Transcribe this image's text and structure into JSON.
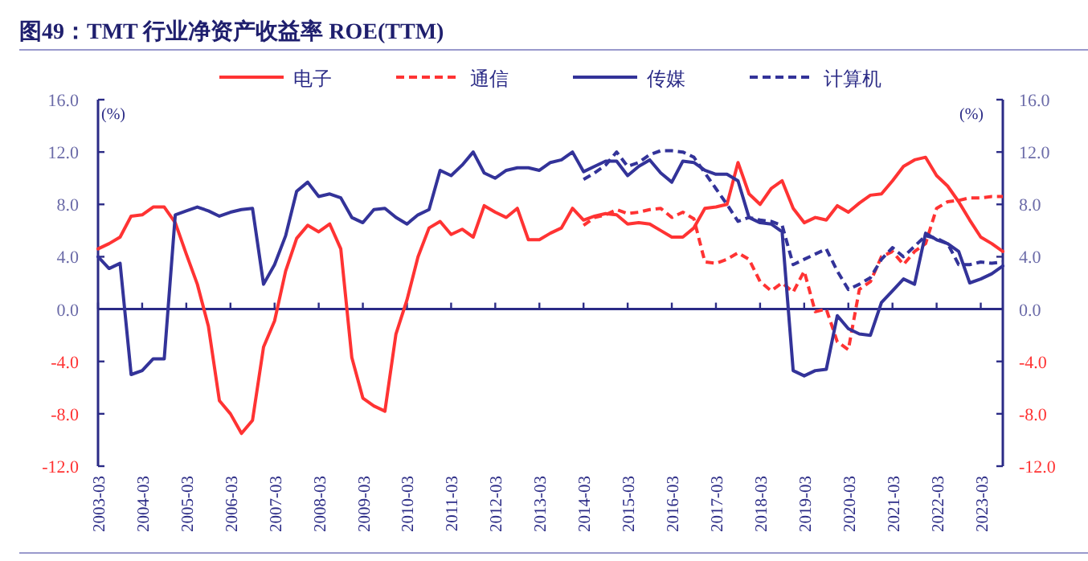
{
  "chart_data": {
    "type": "line",
    "title": "图49：TMT 行业净资产收益率 ROE(TTM)",
    "ylabel": "(%)",
    "y2label": "(%)",
    "x": [
      "2003-03",
      "2003-06",
      "2003-09",
      "2003-12",
      "2004-03",
      "2004-06",
      "2004-09",
      "2004-12",
      "2005-03",
      "2005-06",
      "2005-09",
      "2005-12",
      "2006-03",
      "2006-06",
      "2006-09",
      "2006-12",
      "2007-03",
      "2007-06",
      "2007-09",
      "2007-12",
      "2008-03",
      "2008-06",
      "2008-09",
      "2008-12",
      "2009-03",
      "2009-06",
      "2009-09",
      "2009-12",
      "2010-03",
      "2010-06",
      "2010-09",
      "2010-12",
      "2011-03",
      "2011-06",
      "2011-09",
      "2011-12",
      "2012-03",
      "2012-06",
      "2012-09",
      "2012-12",
      "2013-03",
      "2013-06",
      "2013-09",
      "2013-12",
      "2014-03",
      "2014-06",
      "2014-09",
      "2014-12",
      "2015-03",
      "2015-06",
      "2015-09",
      "2015-12",
      "2016-03",
      "2016-06",
      "2016-09",
      "2016-12",
      "2017-03",
      "2017-06",
      "2017-09",
      "2017-12",
      "2018-03",
      "2018-06",
      "2018-09",
      "2018-12",
      "2019-03",
      "2019-06",
      "2019-09",
      "2019-12",
      "2020-03",
      "2020-06",
      "2020-09",
      "2020-12",
      "2021-03",
      "2021-06",
      "2021-09",
      "2021-12",
      "2022-03",
      "2022-06",
      "2022-09",
      "2022-12",
      "2023-03",
      "2023-06",
      "2023-09"
    ],
    "xlim": [
      "2003-03",
      "2023-09"
    ],
    "xticks": [
      "2003-03",
      "2004-03",
      "2005-03",
      "2006-03",
      "2007-03",
      "2008-03",
      "2009-03",
      "2010-03",
      "2011-03",
      "2012-03",
      "2013-03",
      "2014-03",
      "2015-03",
      "2016-03",
      "2017-03",
      "2018-03",
      "2019-03",
      "2020-03",
      "2021-03",
      "2022-03",
      "2023-03"
    ],
    "ylim": [
      -12,
      16
    ],
    "yticks": [
      {
        "value": -12,
        "label": "-12.0"
      },
      {
        "value": -8,
        "label": "-8.0"
      },
      {
        "value": -4,
        "label": "-4.0"
      },
      {
        "value": 0,
        "label": "0.0"
      },
      {
        "value": 4,
        "label": "4.0"
      },
      {
        "value": 8,
        "label": "8.0"
      },
      {
        "value": 12,
        "label": "12.0"
      },
      {
        "value": 16,
        "label": "16.0"
      }
    ],
    "y2lim": [
      -12,
      16
    ],
    "y2ticks": [
      {
        "value": -12,
        "label": "-12.0"
      },
      {
        "value": -8,
        "label": "-8.0"
      },
      {
        "value": -4,
        "label": "-4.0"
      },
      {
        "value": 0,
        "label": "0.0"
      },
      {
        "value": 4,
        "label": "4.0"
      },
      {
        "value": 8,
        "label": "8.0"
      },
      {
        "value": 12,
        "label": "12.0"
      },
      {
        "value": 16,
        "label": "16.0"
      }
    ],
    "ref_lines": [
      {
        "axis": "y",
        "value": 0,
        "color": "#2b2b86"
      }
    ],
    "legend": "top",
    "grid": false,
    "marker": "none",
    "series": [
      {
        "name": "电子",
        "color": "#ff3333",
        "line_style": "solid",
        "values": [
          4.6,
          5.0,
          5.5,
          7.1,
          7.2,
          7.8,
          7.8,
          6.6,
          4.2,
          1.9,
          -1.3,
          -7.0,
          -8.0,
          -9.5,
          -8.5,
          -2.9,
          -0.9,
          2.9,
          5.4,
          6.4,
          5.9,
          6.5,
          4.6,
          -3.7,
          -6.8,
          -7.4,
          -7.8,
          -1.9,
          0.7,
          4.0,
          6.2,
          6.7,
          5.7,
          6.1,
          5.5,
          7.9,
          7.4,
          7.0,
          7.7,
          5.3,
          5.3,
          5.8,
          6.2,
          7.7,
          6.8,
          7.1,
          7.3,
          7.2,
          6.5,
          6.6,
          6.5,
          6.0,
          5.5,
          5.5,
          6.2,
          7.7,
          7.8,
          8.0,
          11.2,
          8.8,
          8.0,
          9.2,
          9.8,
          7.7,
          6.6,
          7.0,
          6.8,
          7.9,
          7.4,
          8.1,
          8.7,
          8.8,
          9.8,
          10.9,
          11.4,
          11.6,
          10.2,
          9.4,
          8.2,
          6.8,
          5.5,
          5.0,
          4.4
        ]
      },
      {
        "name": "通信",
        "color": "#ff3333",
        "line_style": "dashed",
        "x": [
          "2014-03",
          "2014-06",
          "2014-09",
          "2014-12",
          "2015-03",
          "2015-06",
          "2015-09",
          "2015-12",
          "2016-03",
          "2016-06",
          "2016-09",
          "2016-12",
          "2017-03",
          "2017-06",
          "2017-09",
          "2017-12",
          "2018-03",
          "2018-06",
          "2018-09",
          "2018-12",
          "2019-03",
          "2019-06",
          "2019-09",
          "2019-12",
          "2020-03",
          "2020-06",
          "2020-09",
          "2020-12",
          "2021-03",
          "2021-06",
          "2021-09",
          "2021-12",
          "2022-03",
          "2022-06",
          "2022-09",
          "2022-12",
          "2023-03",
          "2023-06",
          "2023-09"
        ],
        "values": [
          6.4,
          7.0,
          7.2,
          7.6,
          7.3,
          7.4,
          7.6,
          7.7,
          7.0,
          7.4,
          6.9,
          3.6,
          3.5,
          3.8,
          4.3,
          3.8,
          2.1,
          1.4,
          2.0,
          1.3,
          2.9,
          -0.2,
          0.0,
          -2.5,
          -3.1,
          1.5,
          2.1,
          4.0,
          4.4,
          3.4,
          4.4,
          5.0,
          7.7,
          8.2,
          8.3,
          8.5,
          8.5,
          8.6,
          8.6
        ]
      },
      {
        "name": "传媒",
        "color": "#333399",
        "line_style": "solid",
        "values": [
          4.0,
          3.1,
          3.5,
          -5.0,
          -4.7,
          -3.8,
          -3.8,
          7.2,
          7.5,
          7.8,
          7.5,
          7.1,
          7.4,
          7.6,
          7.7,
          1.9,
          3.4,
          5.6,
          9.0,
          9.7,
          8.6,
          8.8,
          8.5,
          7.0,
          6.6,
          7.6,
          7.7,
          7.0,
          6.5,
          7.2,
          7.6,
          10.6,
          10.2,
          11.0,
          12.0,
          10.4,
          10.0,
          10.6,
          10.8,
          10.8,
          10.6,
          11.2,
          11.4,
          12.0,
          10.5,
          10.9,
          11.3,
          11.3,
          10.2,
          10.9,
          11.4,
          10.4,
          9.7,
          11.3,
          11.2,
          10.6,
          10.3,
          10.3,
          9.8,
          7.0,
          6.6,
          6.5,
          5.9,
          -4.7,
          -5.1,
          -4.7,
          -4.6,
          -0.5,
          -1.5,
          -1.9,
          -2.0,
          0.5,
          1.4,
          2.3,
          1.9,
          5.8,
          5.3,
          5.0,
          4.4,
          2.0,
          2.3,
          2.7,
          3.3
        ]
      },
      {
        "name": "计算机",
        "color": "#333399",
        "line_style": "dashed",
        "x": [
          "2014-03",
          "2014-06",
          "2014-09",
          "2014-12",
          "2015-03",
          "2015-06",
          "2015-09",
          "2015-12",
          "2016-03",
          "2016-06",
          "2016-09",
          "2016-12",
          "2017-03",
          "2017-06",
          "2017-09",
          "2017-12",
          "2018-03",
          "2018-06",
          "2018-09",
          "2018-12",
          "2019-03",
          "2019-06",
          "2019-09",
          "2019-12",
          "2020-03",
          "2020-06",
          "2020-09",
          "2020-12",
          "2021-03",
          "2021-06",
          "2021-09",
          "2021-12",
          "2022-03",
          "2022-06",
          "2022-09",
          "2022-12",
          "2023-03",
          "2023-06",
          "2023-09"
        ],
        "values": [
          9.9,
          10.4,
          11.0,
          12.0,
          10.9,
          11.2,
          11.8,
          12.1,
          12.1,
          12.0,
          11.6,
          10.4,
          9.2,
          8.0,
          6.7,
          7.0,
          6.8,
          6.7,
          6.4,
          3.4,
          3.8,
          4.2,
          4.6,
          2.9,
          1.5,
          1.9,
          2.4,
          3.8,
          4.7,
          4.0,
          4.8,
          5.6,
          5.4,
          5.0,
          3.4,
          3.4,
          3.6,
          3.5,
          3.6
        ]
      }
    ]
  }
}
